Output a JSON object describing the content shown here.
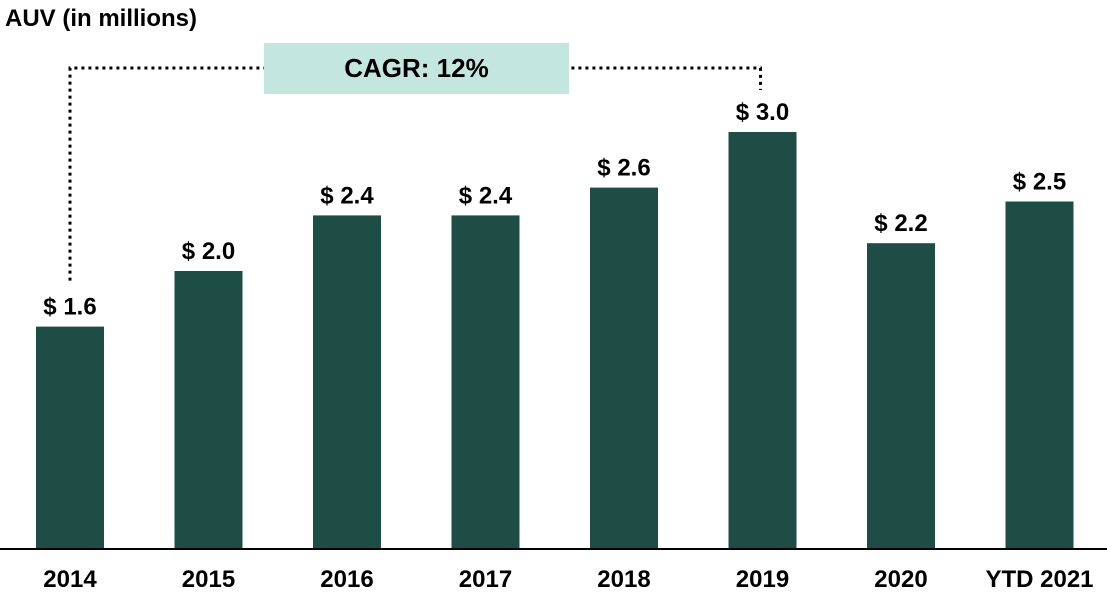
{
  "chart_data": {
    "type": "bar",
    "title": "AUV (in millions)",
    "xlabel": "",
    "ylabel": "AUV (in millions)",
    "categories": [
      "2014",
      "2015",
      "2016",
      "2017",
      "2018",
      "2019",
      "2020",
      "YTD 2021"
    ],
    "values": [
      1.6,
      2.0,
      2.4,
      2.4,
      2.6,
      3.0,
      2.2,
      2.5
    ],
    "value_labels": [
      "$ 1.6",
      "$ 2.0",
      "$ 2.4",
      "$ 2.4",
      "$ 2.6",
      "$ 3.0",
      "$ 2.2",
      "$ 2.5"
    ],
    "ylim": [
      0,
      3.0
    ],
    "grid": false,
    "legend": "none",
    "annotation": {
      "text": "CAGR: 12%",
      "from_category": "2014",
      "to_category": "2019"
    },
    "colors": {
      "bar": "#1d4d45",
      "annotation_fill": "#c3e6df",
      "text": "#000000",
      "axis": "#000000"
    }
  }
}
